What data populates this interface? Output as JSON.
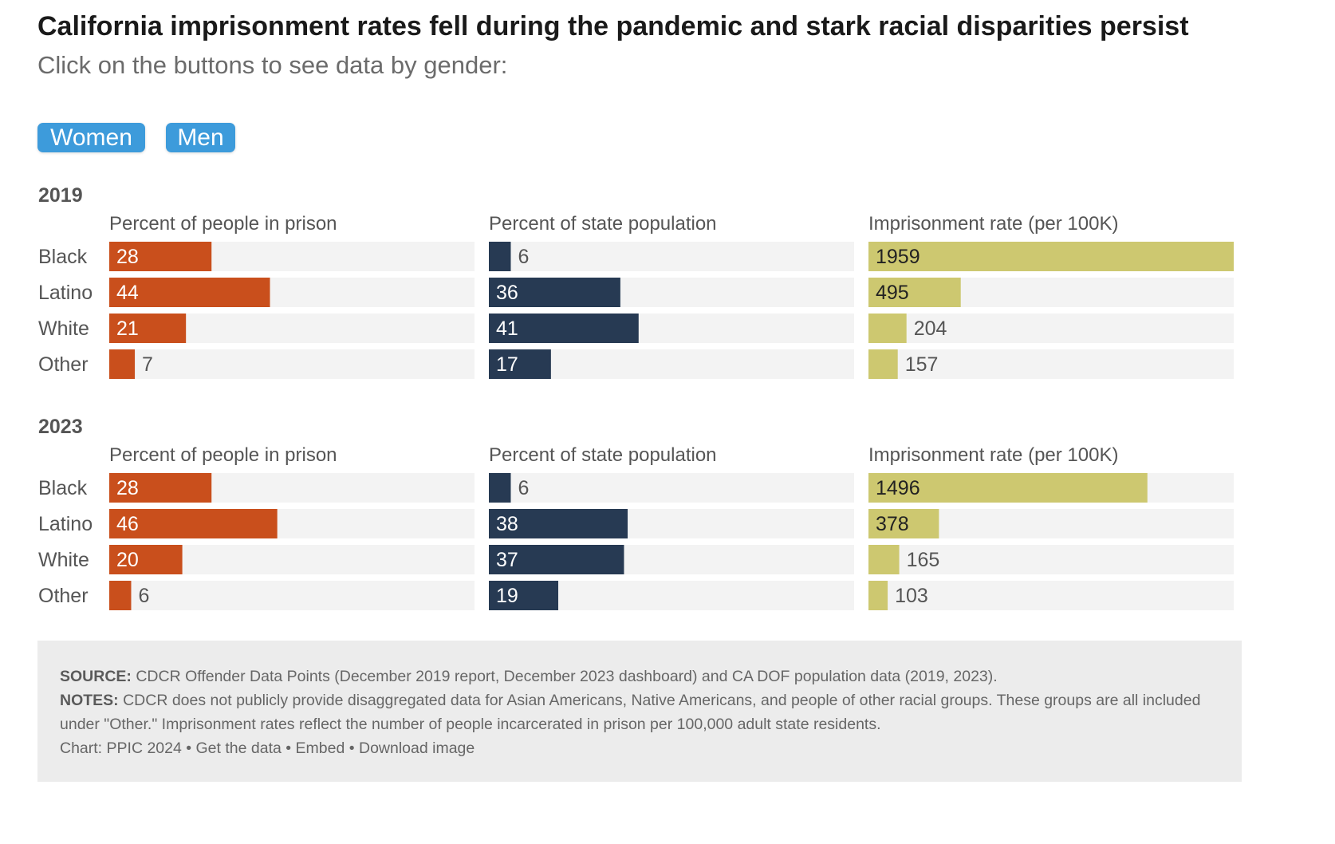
{
  "title": "California imprisonment rates fell during the pandemic and stark racial disparities persist",
  "subtitle": "Click on the buttons to see data by gender:",
  "buttons": {
    "women": "Women",
    "men": "Men"
  },
  "colors": {
    "prison": "#c94f1c",
    "population": "#273a53",
    "rate": "#cdc870",
    "track": "#f3f3f3",
    "button": "#3d9bdb"
  },
  "chart_data": {
    "type": "bar",
    "categories": [
      "Black",
      "Latino",
      "White",
      "Other"
    ],
    "metrics": [
      {
        "key": "prison",
        "label": "Percent of people in prison",
        "max": 100
      },
      {
        "key": "population",
        "label": "Percent of state population",
        "max": 100
      },
      {
        "key": "rate",
        "label": "Imprisonment rate (per 100K)",
        "max": 1959
      }
    ],
    "panels": [
      {
        "year": "2019",
        "series": [
          {
            "metric": "prison",
            "values": [
              28,
              44,
              21,
              7
            ]
          },
          {
            "metric": "population",
            "values": [
              6,
              36,
              41,
              17
            ]
          },
          {
            "metric": "rate",
            "values": [
              1959,
              495,
              204,
              157
            ]
          }
        ]
      },
      {
        "year": "2023",
        "series": [
          {
            "metric": "prison",
            "values": [
              28,
              46,
              20,
              6
            ]
          },
          {
            "metric": "population",
            "values": [
              6,
              38,
              37,
              19
            ]
          },
          {
            "metric": "rate",
            "values": [
              1496,
              378,
              165,
              103
            ]
          }
        ]
      }
    ]
  },
  "footer": {
    "source_label": "SOURCE:",
    "source_text": " CDCR Offender Data Points (December 2019 report, December 2023 dashboard) and CA DOF population data (2019, 2023).",
    "notes_label": "NOTES:",
    "notes_text": " CDCR does not publicly provide disaggregated data for Asian Americans, Native Americans, and people of other racial groups. These groups are all included under \"Other.\" Imprisonment rates reflect the number of people incarcerated in prison per 100,000 adult state residents.",
    "credit": "Chart: PPIC 2024",
    "sep": " • ",
    "get_data": "Get the data",
    "embed": "Embed",
    "download": "Download image"
  }
}
